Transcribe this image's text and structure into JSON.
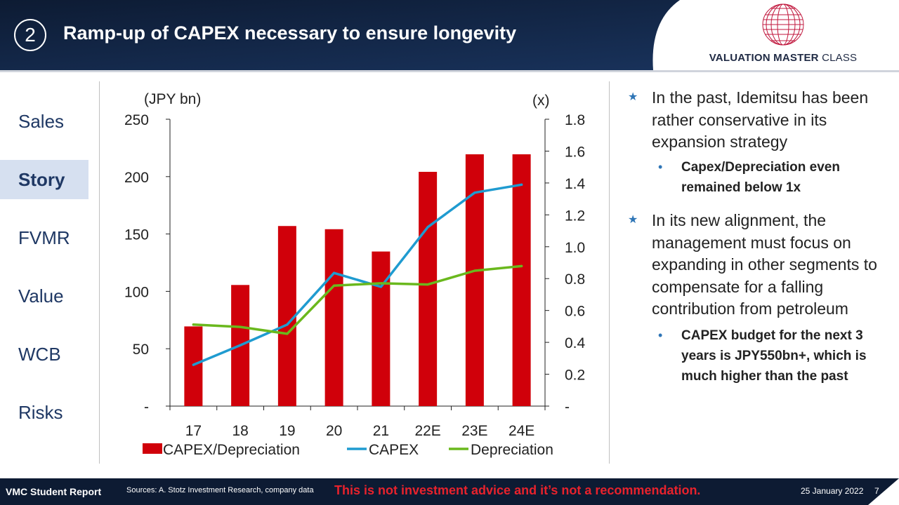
{
  "header": {
    "slide_number": "2",
    "title": "Ramp-up of CAPEX necessary to ensure longevity",
    "brand_bold": "VALUATION MASTER",
    "brand_light": "CLASS",
    "colors": {
      "navy": "#0d1b33",
      "navy_light": "#1a3560"
    }
  },
  "nav": {
    "items": [
      {
        "label": "Sales",
        "active": false
      },
      {
        "label": "Story",
        "active": true
      },
      {
        "label": "FVMR",
        "active": false
      },
      {
        "label": "Value",
        "active": false
      },
      {
        "label": "WCB",
        "active": false
      },
      {
        "label": "Risks",
        "active": false
      }
    ]
  },
  "chart_data": {
    "type": "bar+line",
    "categories": [
      "17",
      "18",
      "19",
      "20",
      "21",
      "22E",
      "23E",
      "24E"
    ],
    "left_axis": {
      "unit_label": "(JPY bn)",
      "ticks": [
        "-",
        "50",
        "100",
        "150",
        "200",
        "250"
      ],
      "range": [
        0,
        250
      ]
    },
    "right_axis": {
      "unit_label": "(x)",
      "ticks": [
        "-",
        "0.2",
        "0.4",
        "0.6",
        "0.8",
        "1.0",
        "1.2",
        "1.4",
        "1.6",
        "1.8"
      ],
      "range": [
        0,
        1.8
      ]
    },
    "series": [
      {
        "name": "CAPEX/Depreciation",
        "type": "bar",
        "axis": "right",
        "color": "#d0000a",
        "values": [
          0.5,
          0.76,
          1.13,
          1.11,
          0.97,
          1.47,
          1.58,
          1.58
        ]
      },
      {
        "name": "CAPEX",
        "type": "line",
        "axis": "left",
        "color": "#1f9bd0",
        "values": [
          36,
          53,
          71,
          116,
          104,
          156,
          186,
          193
        ]
      },
      {
        "name": "Depreciation",
        "type": "line",
        "axis": "left",
        "color": "#6ab81d",
        "values": [
          71,
          69,
          63,
          105,
          107,
          106,
          118,
          122
        ]
      }
    ],
    "grid": false,
    "legend_position": "bottom"
  },
  "panel": {
    "bullets": [
      {
        "text": "In the past, Idemitsu has been rather conservative in its expansion strategy",
        "subs": [
          "Capex/Depreciation even remained below 1x"
        ]
      },
      {
        "text": "In its new alignment, the management must focus on expanding in other segments to compensate for a falling contribution from petroleum",
        "subs": [
          "CAPEX budget for the next 3 years is JPY550bn+, which is much higher than the past"
        ]
      }
    ]
  },
  "footer": {
    "report": "VMC Student Report",
    "sources": "Sources: A. Stotz Investment Research, company data",
    "disclaimer": "This is not investment advice and it’s not a recommendation.",
    "date": "25 January 2022",
    "page": "7"
  }
}
